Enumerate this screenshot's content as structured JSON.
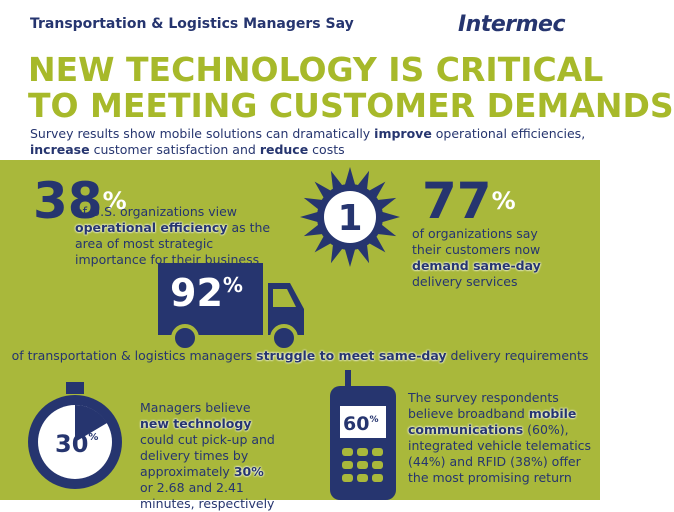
{
  "header": {
    "kicker": "Transportation & Logistics Managers Say",
    "logo": "Intermec",
    "title_lines": [
      "NEW TECHNOLOGY IS CRITICAL",
      "TO MEETING CUSTOMER DEMANDS"
    ],
    "intro": [
      {
        "text": "Survey results show mobile solutions can dramatically "
      },
      {
        "text": "improve",
        "strong": true
      },
      {
        "text": " operational efficiencies, "
      },
      {
        "text": "increase",
        "strong": true
      },
      {
        "text": " customer satisfaction and "
      },
      {
        "text": "reduce",
        "strong": true
      },
      {
        "text": " costs"
      }
    ]
  },
  "stats": [
    {
      "number": "38",
      "unit": "%",
      "text": [
        {
          "text": "of U.S. organizations view "
        },
        {
          "text": "operational efficiency",
          "strong": true
        },
        {
          "text": " as the area of most strategic importance for their business"
        }
      ]
    },
    {
      "badge": "1",
      "number": "77",
      "unit": "%",
      "text": [
        {
          "text": "of organizations say their customers now "
        },
        {
          "text": "demand same-day",
          "strong": true
        },
        {
          "text": " delivery services"
        }
      ]
    },
    {
      "number": "92",
      "unit": "%",
      "text": [
        {
          "text": "of transportation & logistics managers "
        },
        {
          "text": "struggle to meet same-day",
          "strong": true
        },
        {
          "text": " delivery requirements"
        }
      ]
    },
    {
      "number": "30",
      "unit": "%",
      "text": [
        {
          "text": "Managers believe "
        },
        {
          "text": "new technology",
          "strong": true
        },
        {
          "text": " could cut pick-up and delivery times by approximately "
        },
        {
          "text": "30%",
          "strong": true
        },
        {
          "text": " or 2.68 and 2.41 minutes, respectively"
        }
      ]
    },
    {
      "number": "60",
      "unit": "%",
      "text": [
        {
          "text": "The survey respondents believe broadband "
        },
        {
          "text": "mobile communications",
          "strong": true
        },
        {
          "text": " (60%), integrated vehicle telematics (44%) and RFID (38%) offer the most promising return"
        }
      ]
    }
  ]
}
